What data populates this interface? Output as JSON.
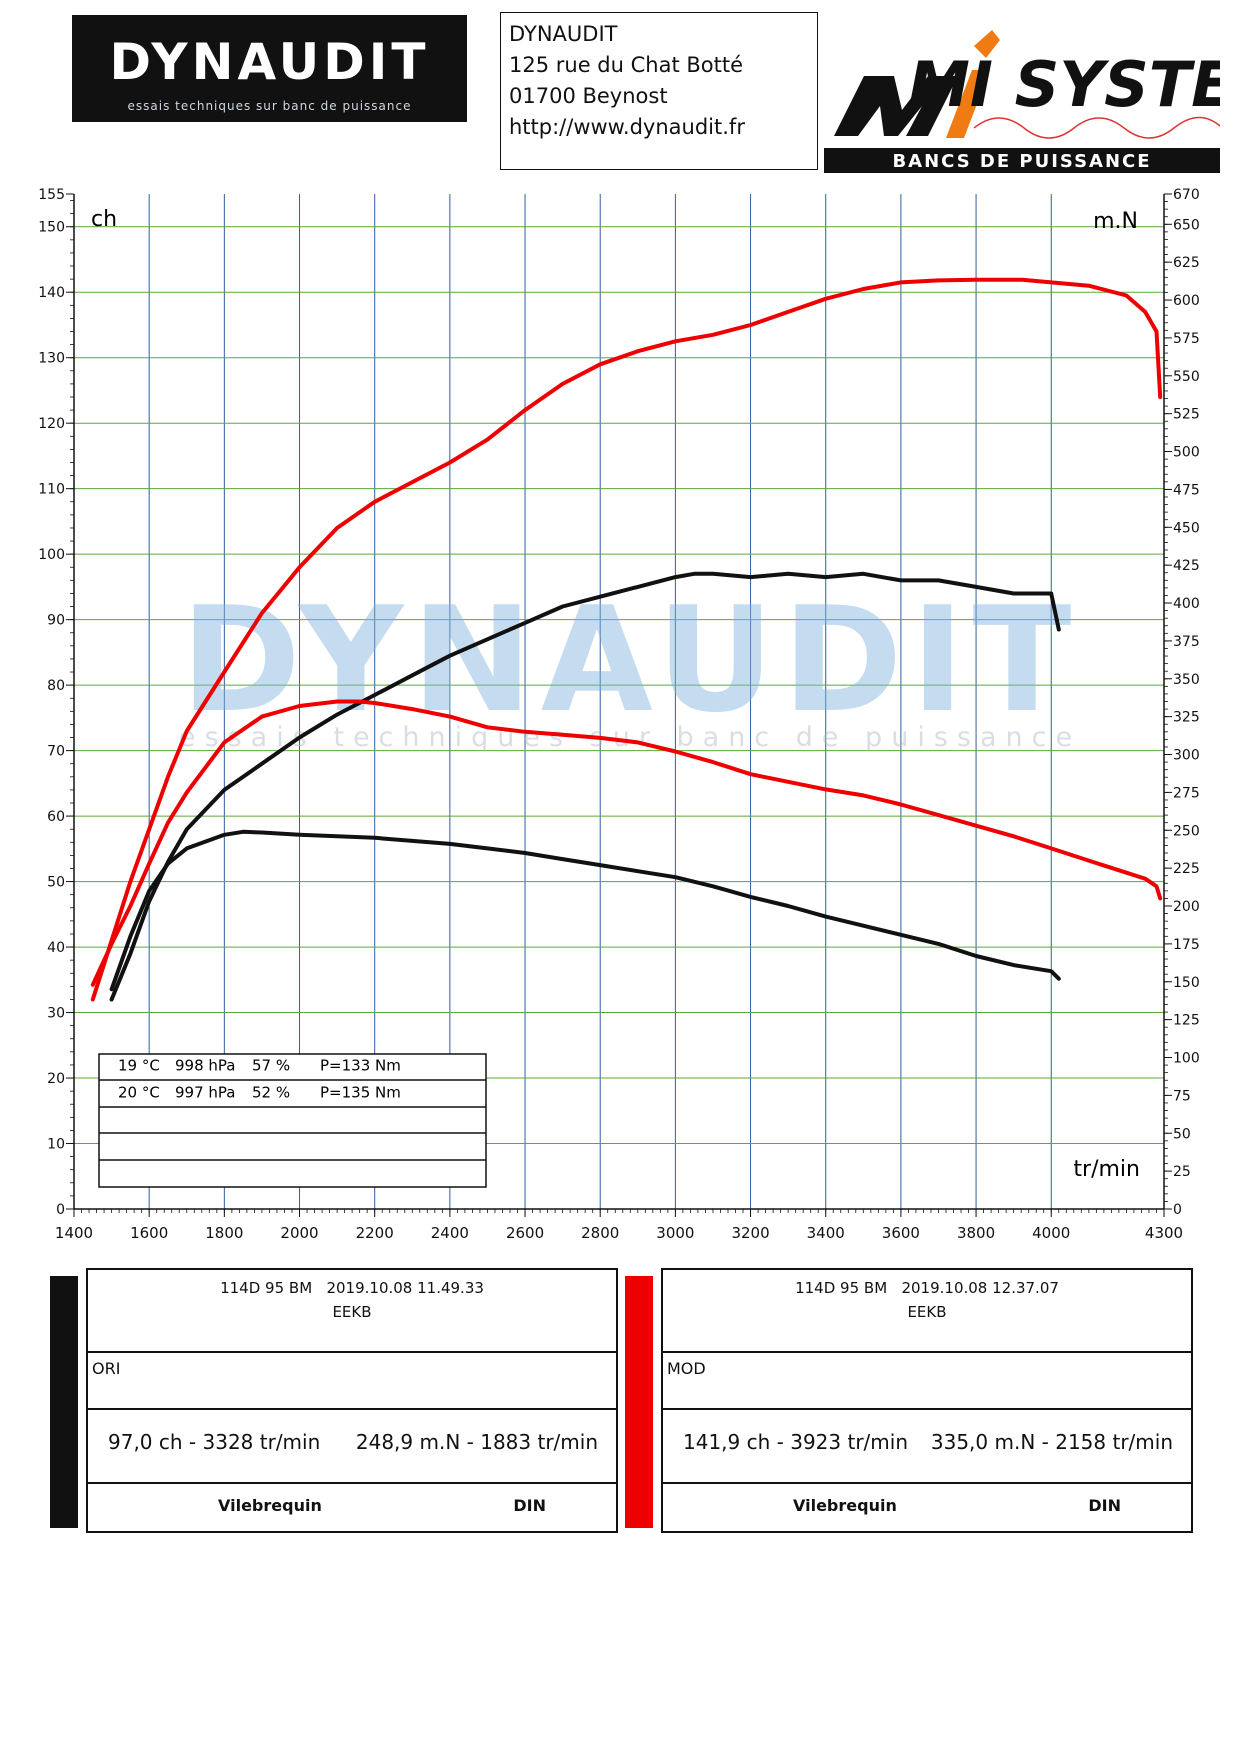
{
  "header": {
    "logo_left": {
      "name": "DYNAUDIT",
      "tagline": "essais techniques sur banc de puissance"
    },
    "address": [
      "DYNAUDIT",
      "125 rue du Chat Botté",
      "01700 Beynost",
      "http://www.dynaudit.fr"
    ],
    "logo_right": {
      "name": "MI SYSTEMS",
      "tagline": "BANCS DE PUISSANCE"
    }
  },
  "watermark": {
    "name": "DYNAUDIT",
    "tagline": "essais techniques sur banc de puissance"
  },
  "chart_data": {
    "type": "line",
    "left_unit": "ch",
    "right_unit": "m.N",
    "x_unit": "tr/min",
    "xlim": [
      1400,
      4300
    ],
    "ylim_left": [
      0,
      155
    ],
    "ylim_right": [
      0,
      670
    ],
    "x_ticks": [
      1400,
      1600,
      1800,
      2000,
      2200,
      2400,
      2600,
      2800,
      3000,
      3200,
      3400,
      3600,
      3800,
      4000,
      4300
    ],
    "y_ticks_left": [
      0,
      10,
      20,
      30,
      40,
      50,
      60,
      70,
      80,
      90,
      100,
      110,
      120,
      130,
      140,
      150,
      155
    ],
    "y_ticks_right": [
      0,
      25,
      50,
      75,
      100,
      125,
      150,
      175,
      200,
      225,
      250,
      275,
      300,
      325,
      350,
      375,
      400,
      425,
      450,
      475,
      500,
      525,
      550,
      575,
      600,
      625,
      650,
      670
    ],
    "grid": true,
    "series": [
      {
        "name": "ORI",
        "measure": "power",
        "axis": "left",
        "color": "#111111",
        "x": [
          1500,
          1550,
          1600,
          1650,
          1700,
          1800,
          1900,
          2000,
          2100,
          2200,
          2300,
          2400,
          2500,
          2600,
          2700,
          2800,
          2900,
          3000,
          3050,
          3100,
          3200,
          3300,
          3400,
          3500,
          3600,
          3700,
          3800,
          3900,
          4000,
          4020
        ],
        "values": [
          32,
          39,
          47,
          53,
          58,
          64,
          68,
          72,
          75.5,
          78.5,
          81.5,
          84.5,
          87,
          89.5,
          92,
          93.5,
          95,
          96.5,
          97,
          97,
          96.5,
          97,
          96.5,
          97,
          96,
          96,
          95,
          94,
          94,
          88.5
        ]
      },
      {
        "name": "ORI",
        "measure": "torque",
        "axis": "right",
        "color": "#111111",
        "x": [
          1500,
          1550,
          1600,
          1650,
          1700,
          1800,
          1850,
          1900,
          2000,
          2100,
          2200,
          2300,
          2400,
          2500,
          2600,
          2700,
          2800,
          2900,
          3000,
          3100,
          3200,
          3300,
          3400,
          3500,
          3600,
          3700,
          3800,
          3900,
          4000,
          4020
        ],
        "values": [
          145,
          180,
          210,
          228,
          238,
          247,
          249,
          248.5,
          247,
          246,
          245,
          243,
          241,
          238,
          235,
          231,
          227,
          223,
          219,
          213,
          206,
          200,
          193,
          187,
          181,
          175,
          167,
          161,
          157,
          152
        ]
      },
      {
        "name": "MOD",
        "measure": "power",
        "axis": "left",
        "color": "#ee0000",
        "x": [
          1450,
          1500,
          1550,
          1600,
          1650,
          1700,
          1800,
          1900,
          2000,
          2100,
          2200,
          2300,
          2400,
          2500,
          2600,
          2700,
          2800,
          2900,
          3000,
          3100,
          3200,
          3300,
          3400,
          3500,
          3600,
          3700,
          3800,
          3900,
          3923,
          4000,
          4100,
          4200,
          4250,
          4280,
          4290
        ],
        "values": [
          32,
          41,
          50,
          58,
          66,
          73,
          82,
          91,
          98,
          104,
          108,
          111,
          114,
          117.5,
          122,
          126,
          129,
          131,
          132.5,
          133.5,
          135,
          137,
          139,
          140.5,
          141.5,
          141.8,
          141.9,
          141.9,
          141.9,
          141.5,
          141,
          139.5,
          137,
          134,
          124
        ]
      },
      {
        "name": "MOD",
        "measure": "torque",
        "axis": "right",
        "color": "#ee0000",
        "x": [
          1450,
          1500,
          1550,
          1600,
          1650,
          1700,
          1800,
          1900,
          2000,
          2100,
          2158,
          2200,
          2300,
          2400,
          2500,
          2600,
          2700,
          2800,
          2900,
          3000,
          3100,
          3200,
          3300,
          3400,
          3500,
          3600,
          3700,
          3800,
          3900,
          4000,
          4100,
          4200,
          4250,
          4280,
          4290
        ],
        "values": [
          148,
          175,
          200,
          228,
          255,
          275,
          308,
          325,
          332,
          335,
          335,
          334,
          330,
          325,
          318,
          315,
          313,
          311,
          308,
          302,
          295,
          287,
          282,
          277,
          273,
          267,
          260,
          253,
          246,
          238,
          230,
          222,
          218,
          213,
          205
        ]
      }
    ],
    "conditions_table": {
      "rows": [
        {
          "temp": "19 °C",
          "pressure": "998 hPa",
          "humidity": "57 %",
          "loss": "P=133 Nm"
        },
        {
          "temp": "20 °C",
          "pressure": "997 hPa",
          "humidity": "52 %",
          "loss": "P=135 Nm"
        },
        {
          "temp": "",
          "pressure": "",
          "humidity": "",
          "loss": ""
        },
        {
          "temp": "",
          "pressure": "",
          "humidity": "",
          "loss": ""
        },
        {
          "temp": "",
          "pressure": "",
          "humidity": "",
          "loss": ""
        }
      ]
    }
  },
  "runs": [
    {
      "id": "ori",
      "color": "#111111",
      "vehicle": "114D 95 BM",
      "timestamp": "2019.10.08 11.49.33",
      "code": "EEKB",
      "label": "ORI",
      "peak_power": "97,0 ch - 3328 tr/min",
      "peak_torque": "248,9 m.N - 1883 tr/min",
      "measure_point": "Vilebrequin",
      "standard": "DIN"
    },
    {
      "id": "mod",
      "color": "#ee0000",
      "vehicle": "114D 95 BM",
      "timestamp": "2019.10.08 12.37.07",
      "code": "EEKB",
      "label": "MOD",
      "peak_power": "141,9 ch - 3923 tr/min",
      "peak_torque": "335,0 m.N - 2158 tr/min",
      "measure_point": "Vilebrequin",
      "standard": "DIN"
    }
  ]
}
